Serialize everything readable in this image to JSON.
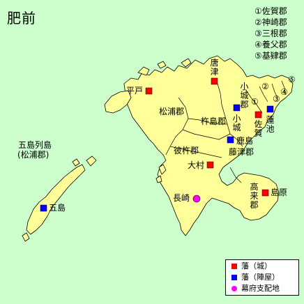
{
  "title": "肥前",
  "district_list": [
    "①佐賀郡",
    "②神崎郡",
    "③三根郡",
    "④養父郡",
    "⑤基肄郡"
  ],
  "colors": {
    "sea": "#ccffcc",
    "land": "#ffff99",
    "border": "#000000",
    "han_castle": "#ff0000",
    "han_jinya": "#0000ff",
    "bakufu": "#ff00ff"
  },
  "labels": {
    "goto_islands": "五島列島",
    "goto_note": "(松浦郡)",
    "matsuura": "松浦郡",
    "kineshima": "杵島郡",
    "sonogi": "彼杵郡",
    "fujitsu": "藤津郡",
    "takaki": "高来郡",
    "ogi_district": "小城郡",
    "n1": "①",
    "n2": "②",
    "n3": "③",
    "n4": "④",
    "n5": "⑤"
  },
  "markers": {
    "karatsu": "唐津",
    "hirado": "平戸",
    "ogi_town": "小城",
    "saga": "佐賀",
    "hasunoike": "蓮池",
    "kashima": "鹿島",
    "omura": "大村",
    "shimabara": "島原",
    "nagasaki": "長崎",
    "goto": "五島"
  },
  "legend": {
    "castle": "藩（城）",
    "jinya": "藩（陣屋）",
    "bakufu": "幕府支配地"
  }
}
